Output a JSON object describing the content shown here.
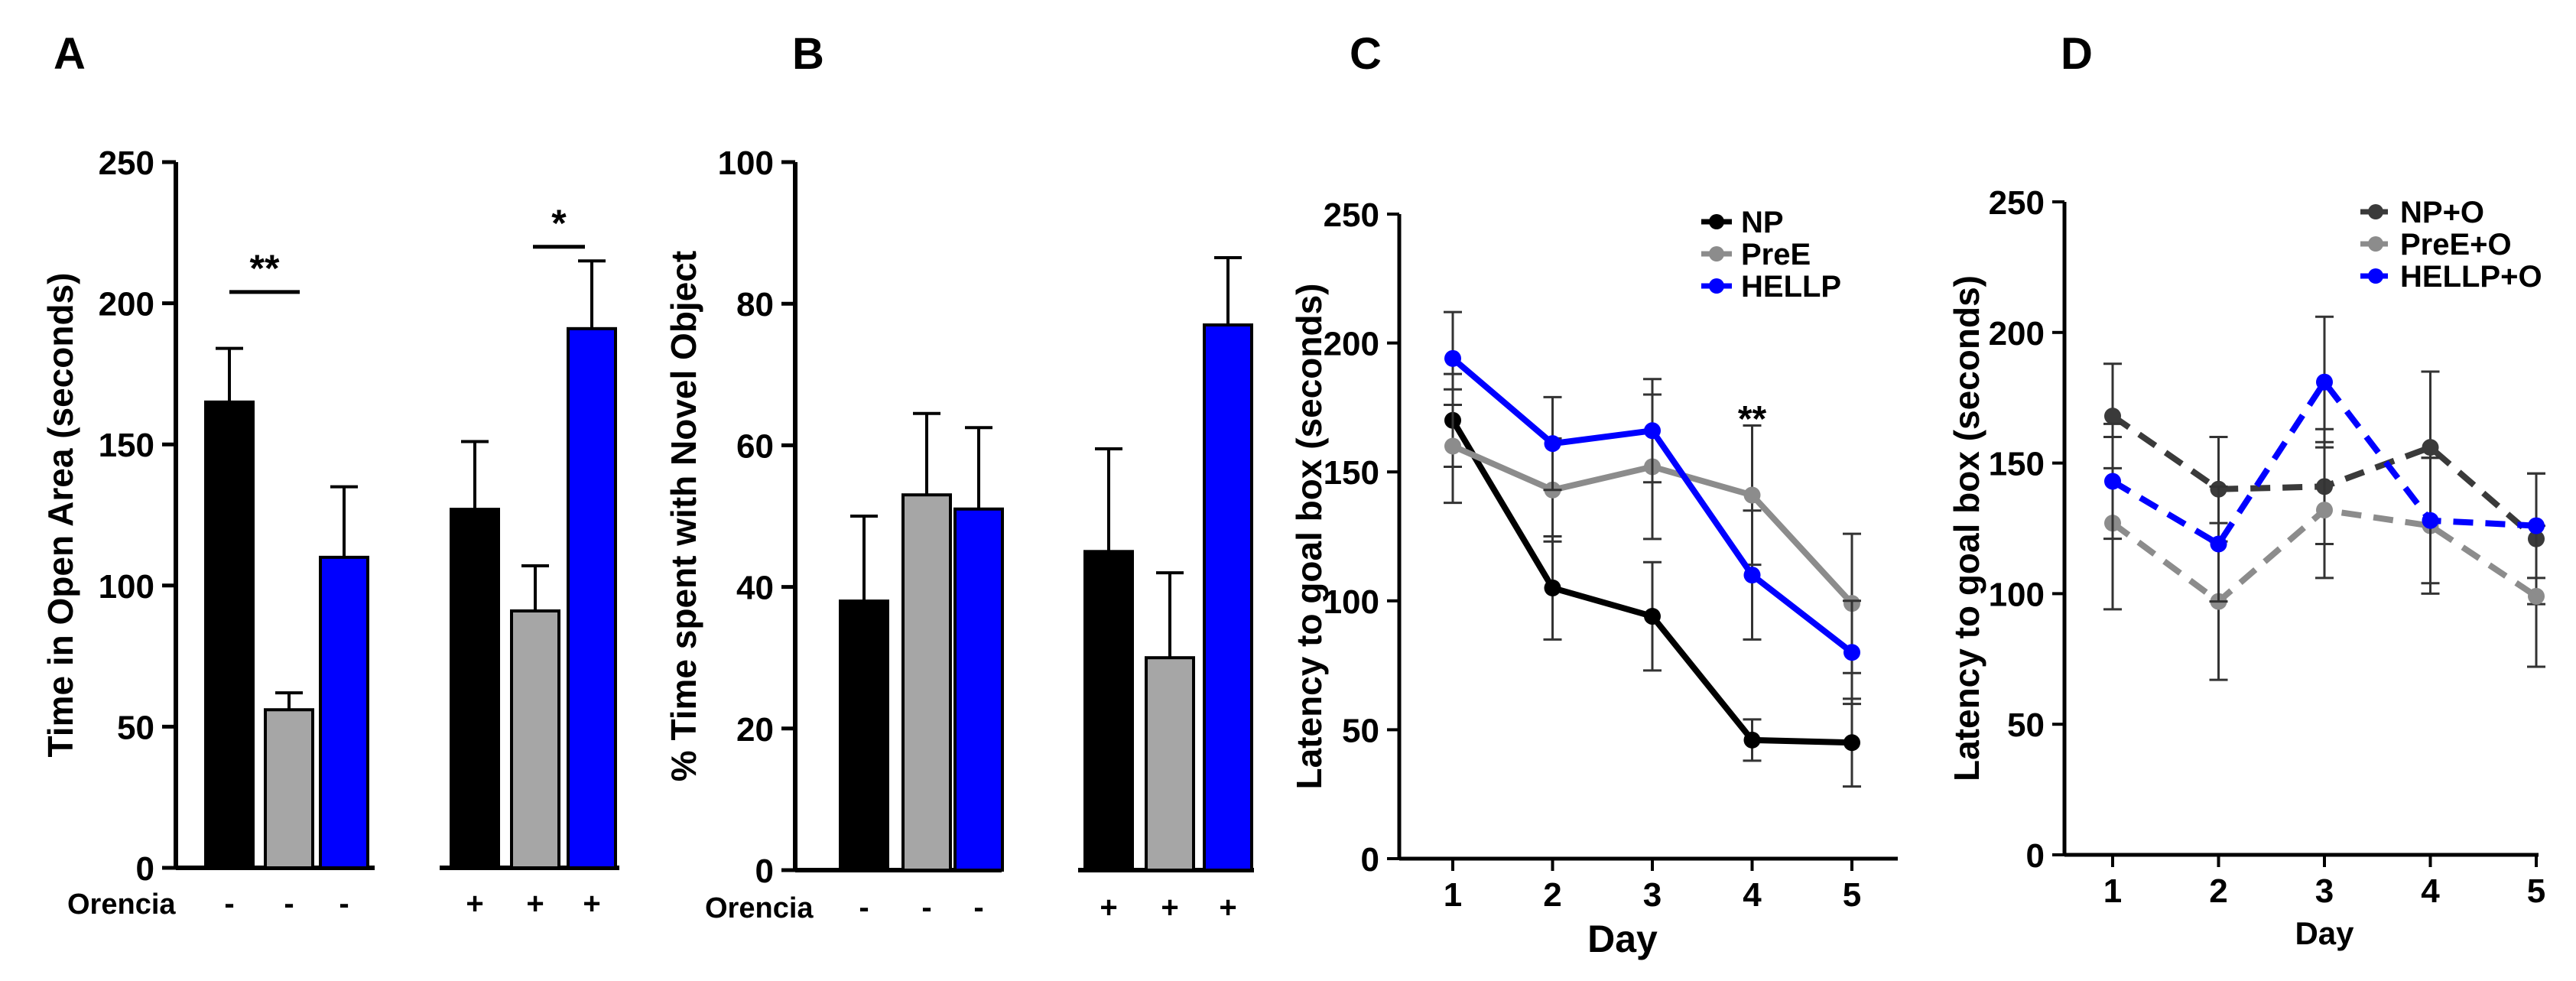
{
  "panels": {
    "A": {
      "letter": "A"
    },
    "B": {
      "letter": "B"
    },
    "C": {
      "letter": "C"
    },
    "D": {
      "letter": "D"
    }
  },
  "colors": {
    "np": "#000000",
    "pree_bar": "#a6a6a6",
    "hellp": "#0000ff",
    "pree_line": "#8c8c8c",
    "np_o": "#3a3a3a",
    "pree_o": "#8c8c8c"
  },
  "chart_data": [
    {
      "type": "bar",
      "panel": "A",
      "ylabel": "Time in Open Area (seconds)",
      "ylim": [
        0,
        250
      ],
      "yticks": [
        "0",
        "50",
        "100",
        "150",
        "200",
        "250"
      ],
      "groups": [
        {
          "orencia": "-",
          "bars": [
            {
              "series": "NP",
              "value": 165,
              "err": 19
            },
            {
              "series": "PreE",
              "value": 56,
              "err": 6
            },
            {
              "series": "HELLP",
              "value": 110,
              "err": 25
            }
          ]
        },
        {
          "orencia": "+",
          "bars": [
            {
              "series": "NP",
              "value": 127,
              "err": 24
            },
            {
              "series": "PreE",
              "value": 91,
              "err": 16
            },
            {
              "series": "HELLP",
              "value": 191,
              "err": 24
            }
          ]
        }
      ],
      "orencia_label": "Orencia",
      "orencia_marks": [
        "-",
        "-",
        "-",
        "+",
        "+",
        "+"
      ],
      "significance": [
        {
          "label": "**",
          "between": [
            "NP -",
            "PreE -"
          ]
        },
        {
          "label": "*",
          "between": [
            "PreE +",
            "HELLP +"
          ]
        }
      ]
    },
    {
      "type": "bar",
      "panel": "B",
      "ylabel": "% Time spent with Novel Object",
      "ylim": [
        0,
        100
      ],
      "yticks": [
        "0",
        "20",
        "40",
        "60",
        "80",
        "100"
      ],
      "groups": [
        {
          "orencia": "-",
          "bars": [
            {
              "series": "NP",
              "value": 38,
              "err": 12
            },
            {
              "series": "PreE",
              "value": 53,
              "err": 11.5
            },
            {
              "series": "HELLP",
              "value": 51,
              "err": 11.5
            }
          ]
        },
        {
          "orencia": "+",
          "bars": [
            {
              "series": "NP",
              "value": 45,
              "err": 14.5
            },
            {
              "series": "PreE",
              "value": 30,
              "err": 12
            },
            {
              "series": "HELLP",
              "value": 77,
              "err": 9.5
            }
          ]
        }
      ],
      "orencia_label": "Orencia",
      "orencia_marks": [
        "-",
        "-",
        "-",
        "+",
        "+",
        "+"
      ]
    },
    {
      "type": "line",
      "panel": "C",
      "xlabel": "Day",
      "ylabel": "Latency to goal box (seconds)",
      "ylim": [
        0,
        250
      ],
      "yticks": [
        "0",
        "50",
        "100",
        "150",
        "200",
        "250"
      ],
      "x": [
        1,
        2,
        3,
        4,
        5
      ],
      "xticks": [
        "1",
        "2",
        "3",
        "4",
        "5"
      ],
      "series": [
        {
          "name": "NP",
          "style": "solid",
          "values": [
            170,
            105,
            94,
            46,
            45
          ],
          "err": [
            18,
            20,
            21,
            8,
            17
          ]
        },
        {
          "name": "PreE",
          "style": "solid",
          "values": [
            160,
            143,
            152,
            141,
            99
          ],
          "err": [
            22,
            20,
            28,
            27,
            27
          ]
        },
        {
          "name": "HELLP",
          "style": "solid",
          "values": [
            194,
            161,
            166,
            110,
            80
          ],
          "err": [
            18,
            18,
            20,
            25,
            20
          ]
        }
      ],
      "annotations": [
        {
          "label": "**",
          "x": 4,
          "y": 170
        }
      ]
    },
    {
      "type": "line",
      "panel": "D",
      "xlabel": "Day",
      "ylabel": "Latency to goal box (seconds)",
      "ylim": [
        0,
        250
      ],
      "yticks": [
        "0",
        "50",
        "100",
        "150",
        "200",
        "250"
      ],
      "x": [
        1,
        2,
        3,
        4,
        5
      ],
      "xticks": [
        "1",
        "2",
        "3",
        "4",
        "5"
      ],
      "series": [
        {
          "name": "NP+O",
          "style": "dashed",
          "values": [
            168,
            140,
            141,
            156,
            121
          ],
          "err": [
            20,
            20,
            22,
            29,
            25
          ]
        },
        {
          "name": "PreE+O",
          "style": "dashed",
          "values": [
            127,
            97,
            132,
            126,
            99
          ],
          "err": [
            33,
            30,
            26,
            26,
            27
          ]
        },
        {
          "name": "HELLP+O",
          "style": "dashed",
          "values": [
            143,
            119,
            181,
            128,
            126
          ],
          "err": [
            22,
            22,
            25,
            24,
            20
          ]
        }
      ]
    }
  ]
}
